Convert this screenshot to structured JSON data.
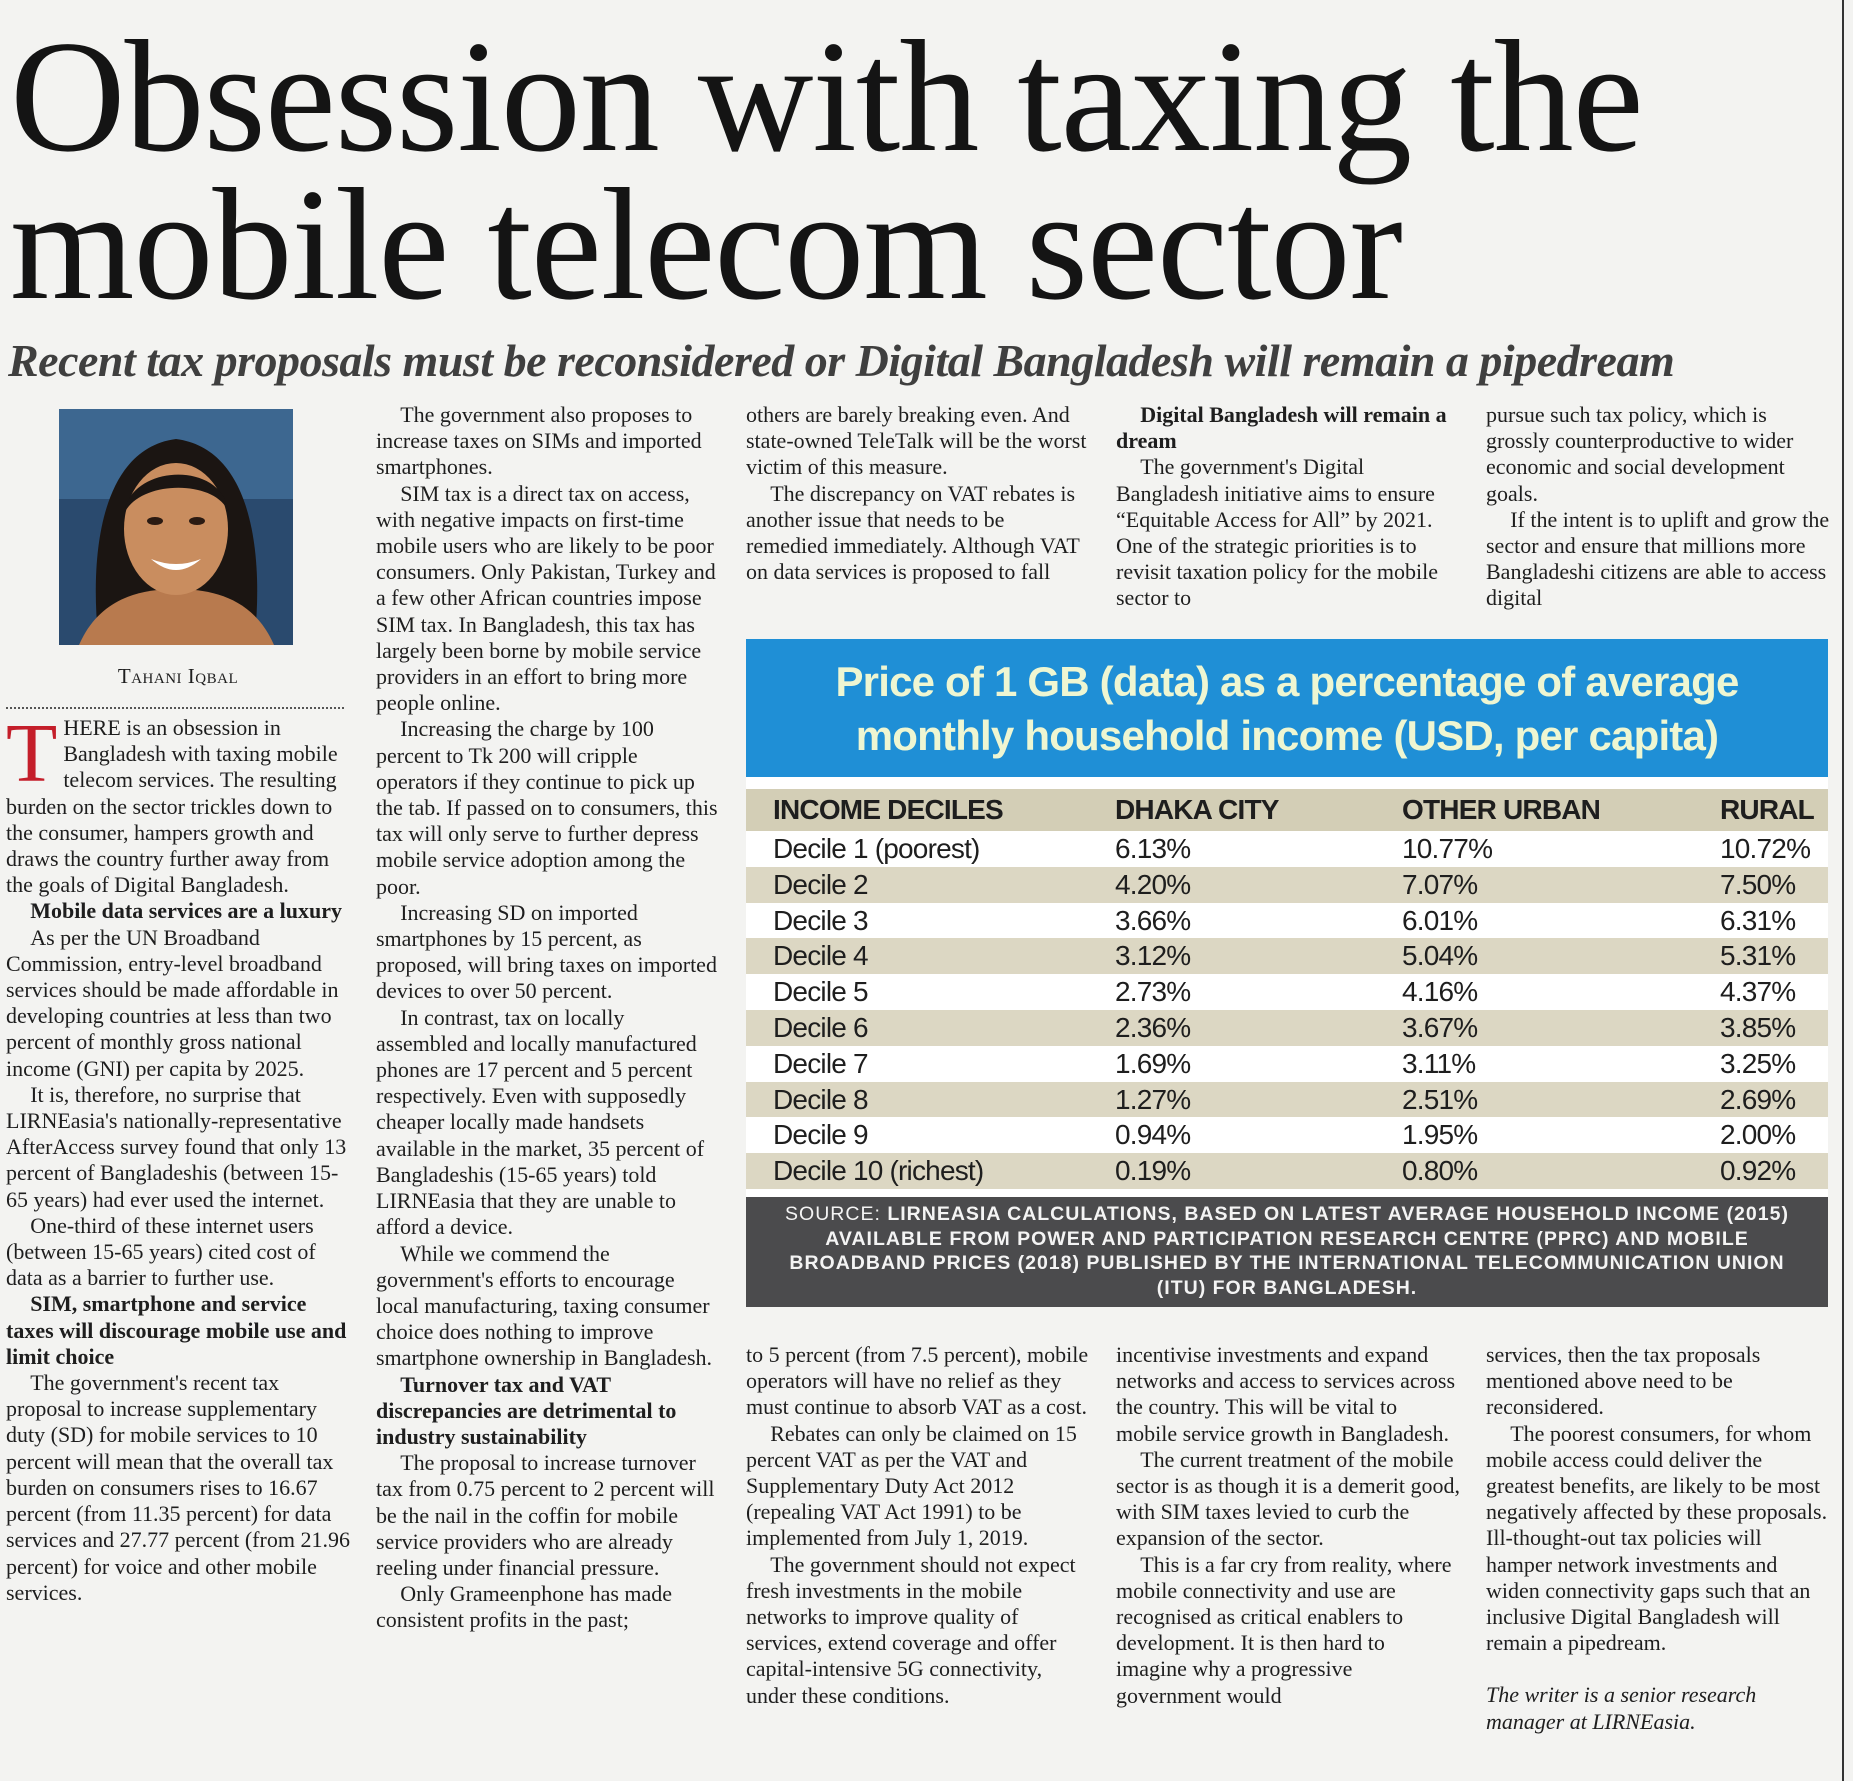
{
  "headline": "Obsession with taxing the mobile telecom sector",
  "subheadline": "Recent tax proposals must be reconsidered or Digital Bangladesh will remain a pipedream",
  "author": "Tahani Iqbal",
  "top_columns": [
    [
      {
        "style": "dropcap",
        "text": "THERE is an obsession in Bangladesh with taxing mobile telecom services. The resulting burden on the sector trickles down to the consumer, hampers growth and draws the country further away from the goals of Digital Bangladesh."
      },
      {
        "style": "heading",
        "text": "Mobile data services are a luxury"
      },
      {
        "style": "body",
        "text": "As per the UN Broadband Commission, entry-level broadband services should be made affordable in developing countries at less than two percent of monthly gross national income (GNI) per capita by 2025."
      },
      {
        "style": "body",
        "text": "It is, therefore, no surprise that LIRNEasia's nationally-representative AfterAccess survey found that only 13 percent of Bangladeshis (between 15-65 years) had ever used the internet."
      },
      {
        "style": "body",
        "text": "One-third of these internet users (between 15-65 years) cited cost of data as a barrier to further use."
      },
      {
        "style": "heading",
        "text": "SIM, smartphone and service taxes will discourage mobile use and limit choice"
      },
      {
        "style": "body",
        "text": "The government's recent tax proposal to increase supplementary duty (SD) for mobile services to 10 percent will mean that the overall tax burden on consumers rises to 16.67 percent (from 11.35 percent) for data services and 27.77 percent (from 21.96 percent) for voice and other mobile services."
      }
    ],
    [
      {
        "style": "body",
        "text": "The government also proposes to increase taxes on SIMs and imported smartphones."
      },
      {
        "style": "body",
        "text": "SIM tax is a direct tax on access, with negative impacts on first-time mobile users who are likely to be poor consumers. Only Pakistan, Turkey and a few other African countries impose SIM tax. In Bangladesh, this tax has largely been borne by mobile service providers in an effort to bring more people online."
      },
      {
        "style": "body",
        "text": "Increasing the charge by 100 percent to Tk 200 will cripple operators if they continue to pick up the tab. If passed on to consumers, this tax will only serve to further depress mobile service adoption among the poor."
      },
      {
        "style": "body",
        "text": "Increasing SD on imported smartphones by 15 percent, as proposed, will bring taxes on imported devices to over 50 percent."
      },
      {
        "style": "body",
        "text": "In contrast, tax on locally assembled and locally manufactured phones are 17 percent and 5 percent respectively. Even with supposedly cheaper locally made handsets available in the market, 35 percent of Bangladeshis (15-65 years) told LIRNEasia that they are unable to afford a device."
      },
      {
        "style": "body",
        "text": "While we commend the government's efforts to encourage local manufacturing, taxing consumer choice does nothing to improve smartphone ownership in Bangladesh."
      },
      {
        "style": "heading",
        "text": "Turnover tax and VAT discrepancies are detrimental to industry sustainability"
      },
      {
        "style": "body",
        "text": "The proposal to increase turnover tax from 0.75 percent to 2 percent will be the nail in the coffin for mobile service providers who are already reeling under financial pressure."
      },
      {
        "style": "body",
        "text": "Only Grameenphone has made consistent profits in the past;"
      }
    ],
    [
      {
        "style": "continued",
        "text": "others are barely breaking even. And state-owned TeleTalk will be the worst victim of this measure."
      },
      {
        "style": "body",
        "text": "The discrepancy on VAT rebates is another issue that needs to be remedied immediately. Although VAT on data services is proposed to fall"
      }
    ],
    [
      {
        "style": "heading",
        "text": "Digital Bangladesh will remain a dream"
      },
      {
        "style": "body",
        "text": "The government's Digital Bangladesh initiative aims to ensure “Equitable Access for All” by 2021. One of the strategic priorities is to revisit taxation policy for the mobile sector to"
      }
    ],
    [
      {
        "style": "continued",
        "text": "pursue such tax policy, which is grossly counterproductive to wider economic and social development goals."
      },
      {
        "style": "body",
        "text": "If the intent is to uplift and grow the sector and ensure that millions more Bangladeshi citizens are able to access digital"
      }
    ]
  ],
  "bottom_columns": [
    [
      {
        "style": "continued",
        "text": "to 5 percent (from 7.5 percent), mobile operators will have no relief as they must continue to absorb VAT as a cost."
      },
      {
        "style": "body",
        "text": "Rebates can only be claimed on 15 percent VAT as per the VAT and Supplementary Duty Act 2012 (repealing VAT Act 1991) to be implemented from July 1, 2019."
      },
      {
        "style": "body",
        "text": "The government should not expect fresh investments in the mobile networks to improve quality of services, extend coverage and offer capital-intensive 5G connectivity, under these conditions."
      }
    ],
    [
      {
        "style": "continued",
        "text": "incentivise investments and expand networks and access to services across the country. This will be vital to mobile service growth in Bangladesh."
      },
      {
        "style": "body",
        "text": "The current treatment of the mobile sector is as though it is a demerit good, with SIM taxes levied to curb the expansion of the sector."
      },
      {
        "style": "body",
        "text": "This is a far cry from reality, where mobile connectivity and use are recognised as critical enablers to development. It is then hard to imagine why a progressive government would"
      }
    ],
    [
      {
        "style": "continued",
        "text": "services, then the tax proposals mentioned above need to be reconsidered."
      },
      {
        "style": "body",
        "text": "The poorest consumers, for whom mobile access could deliver the greatest benefits, are likely to be most negatively affected by these proposals. Ill-thought-out tax policies will hamper network investments and widen connectivity gaps such that an inclusive Digital Bangladesh will remain a pipedream."
      },
      {
        "style": "note",
        "text": "The writer is a senior research manager at LIRNEasia."
      }
    ]
  ],
  "table": {
    "title": "Price of 1 GB (data) as a percentage of average monthly household income (USD, per capita)",
    "headers": [
      "INCOME DECILES",
      "DHAKA CITY",
      "OTHER URBAN",
      "RURAL"
    ],
    "rows": [
      [
        "Decile 1 (poorest)",
        "6.13%",
        "10.77%",
        "10.72%"
      ],
      [
        "Decile 2",
        "4.20%",
        "7.07%",
        "7.50%"
      ],
      [
        "Decile 3",
        "3.66%",
        "6.01%",
        "6.31%"
      ],
      [
        "Decile 4",
        "3.12%",
        "5.04%",
        "5.31%"
      ],
      [
        "Decile 5",
        "2.73%",
        "4.16%",
        "4.37%"
      ],
      [
        "Decile 6",
        "2.36%",
        "3.67%",
        "3.85%"
      ],
      [
        "Decile 7",
        "1.69%",
        "3.11%",
        "3.25%"
      ],
      [
        "Decile 8",
        "1.27%",
        "2.51%",
        "2.69%"
      ],
      [
        "Decile 9",
        "0.94%",
        "1.95%",
        "2.00%"
      ],
      [
        "Decile 10 (richest)",
        "0.19%",
        "0.80%",
        "0.92%"
      ]
    ],
    "source_label": "SOURCE:",
    "source": "LIRNEASIA CALCULATIONS, BASED ON LATEST AVERAGE HOUSEHOLD INCOME (2015) AVAILABLE FROM POWER AND PARTICIPATION RESEARCH CENTRE (PPRC) AND MOBILE BROADBAND PRICES (2018) PUBLISHED BY THE INTERNATIONAL TELECOMMUNICATION UNION (ITU) FOR BANGLADESH."
  }
}
